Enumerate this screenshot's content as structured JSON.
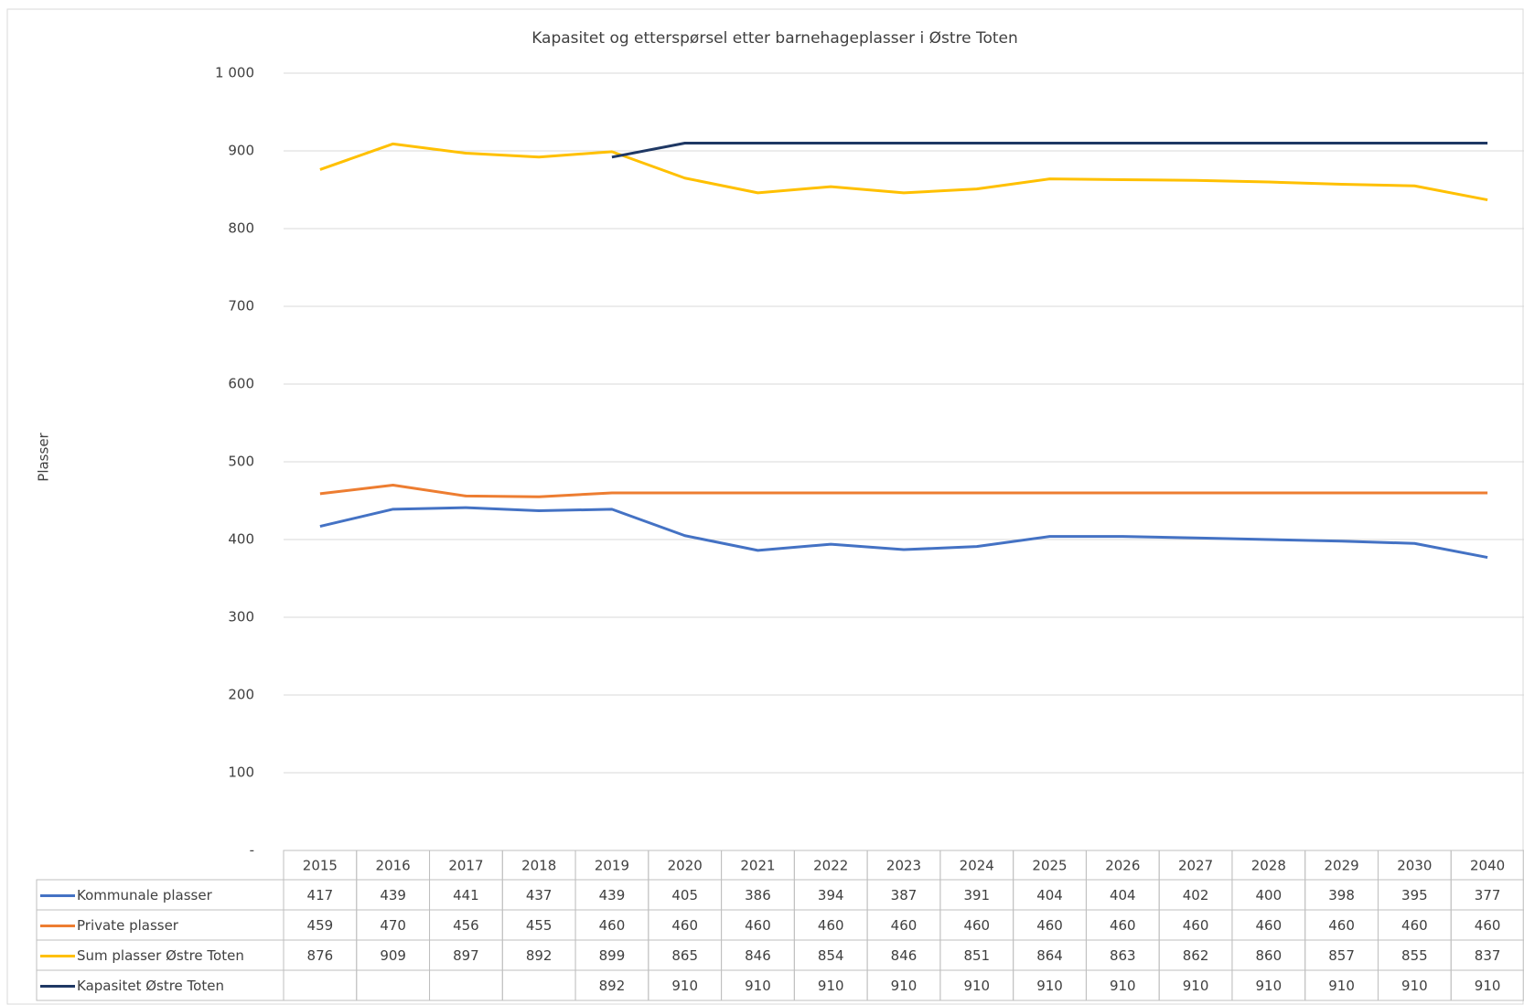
{
  "chart_data": {
    "type": "line",
    "title": "Kapasitet og etterspørsel etter barnehageplasser i Østre Toten",
    "y_label": "Plasser",
    "categories": [
      "2015",
      "2016",
      "2017",
      "2018",
      "2019",
      "2020",
      "2021",
      "2022",
      "2023",
      "2024",
      "2025",
      "2026",
      "2027",
      "2028",
      "2029",
      "2030",
      "2040"
    ],
    "series": [
      {
        "name": "Kommunale plasser",
        "color": "#4472c4",
        "values": [
          417,
          439,
          441,
          437,
          439,
          405,
          386,
          394,
          387,
          391,
          404,
          404,
          402,
          400,
          398,
          395,
          377
        ]
      },
      {
        "name": "Private plasser",
        "color": "#ed7d31",
        "values": [
          459,
          470,
          456,
          455,
          460,
          460,
          460,
          460,
          460,
          460,
          460,
          460,
          460,
          460,
          460,
          460,
          460
        ]
      },
      {
        "name": "Sum plasser Østre Toten",
        "color": "#ffc000",
        "values": [
          876,
          909,
          897,
          892,
          899,
          865,
          846,
          854,
          846,
          851,
          864,
          863,
          862,
          860,
          857,
          855,
          837
        ]
      },
      {
        "name": "Kapasitet Østre Toten",
        "color": "#1f3864",
        "values": [
          null,
          null,
          null,
          null,
          892,
          910,
          910,
          910,
          910,
          910,
          910,
          910,
          910,
          910,
          910,
          910,
          910
        ]
      }
    ],
    "ylim": [
      0,
      1000
    ],
    "yticks": [
      {
        "value": 0,
        "label": "-"
      },
      100,
      200,
      300,
      400,
      500,
      600,
      700,
      800,
      900,
      {
        "value": 1000,
        "label": "1 000"
      }
    ],
    "grid": true
  }
}
